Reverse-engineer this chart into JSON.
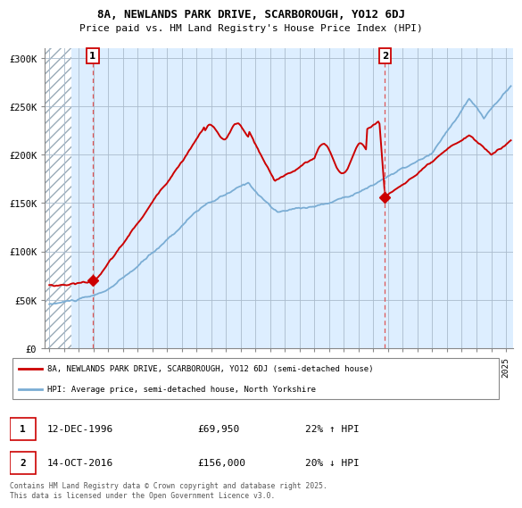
{
  "title_line1": "8A, NEWLANDS PARK DRIVE, SCARBOROUGH, YO12 6DJ",
  "title_line2": "Price paid vs. HM Land Registry's House Price Index (HPI)",
  "ylim": [
    0,
    310000
  ],
  "xlim_start": 1993.7,
  "xlim_end": 2025.5,
  "yticks": [
    0,
    50000,
    100000,
    150000,
    200000,
    250000,
    300000
  ],
  "ytick_labels": [
    "£0",
    "£50K",
    "£100K",
    "£150K",
    "£200K",
    "£250K",
    "£300K"
  ],
  "sale1_x": 1996.95,
  "sale1_y": 69950,
  "sale1_label": "1",
  "sale2_x": 2016.79,
  "sale2_y": 156000,
  "sale2_label": "2",
  "red_line_color": "#cc0000",
  "blue_line_color": "#7aadd4",
  "background_chart_color": "#ddeeff",
  "annotation_box_color": "#cc0000",
  "legend_label_red": "8A, NEWLANDS PARK DRIVE, SCARBOROUGH, YO12 6DJ (semi-detached house)",
  "legend_label_blue": "HPI: Average price, semi-detached house, North Yorkshire",
  "table_row1": [
    "1",
    "12-DEC-1996",
    "£69,950",
    "22% ↑ HPI"
  ],
  "table_row2": [
    "2",
    "14-OCT-2016",
    "£156,000",
    "20% ↓ HPI"
  ],
  "footer_text": "Contains HM Land Registry data © Crown copyright and database right 2025.\nThis data is licensed under the Open Government Licence v3.0.",
  "grid_color": "#aabbcc",
  "hatch_color": "#aabbcc"
}
